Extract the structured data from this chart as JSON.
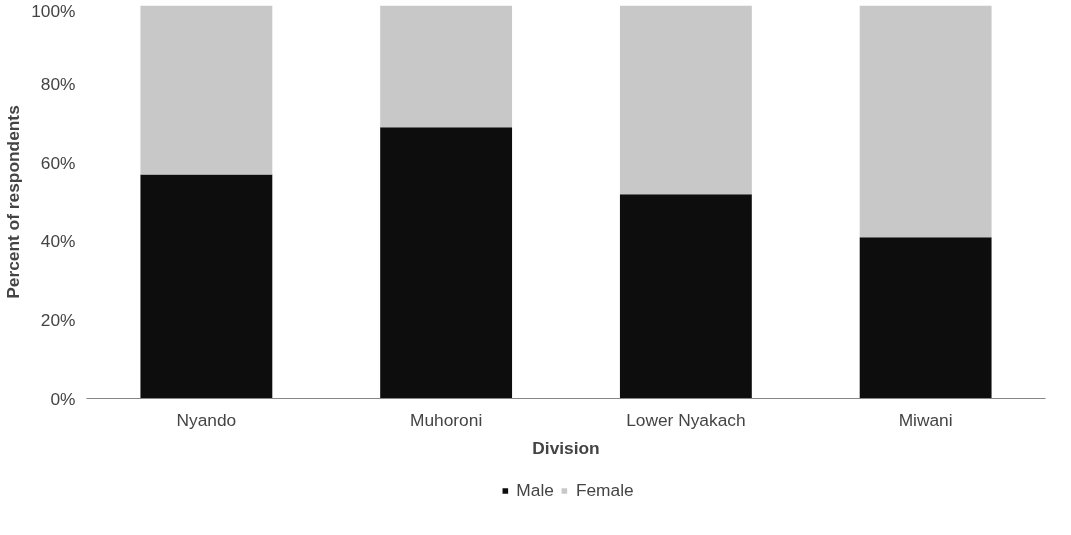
{
  "chart_data": {
    "type": "bar",
    "stacked": true,
    "xlabel": "Division",
    "ylabel": "Percent of respondents",
    "categories": [
      "Nyando",
      "Muhoroni",
      "Lower Nyakach",
      "Miwani"
    ],
    "series": [
      {
        "name": "Male",
        "color": "#0d0d0d",
        "values": [
          57,
          69,
          52,
          41
        ]
      },
      {
        "name": "Female",
        "color": "#c8c8c8",
        "values": [
          43,
          31,
          48,
          59
        ]
      }
    ],
    "ylim": [
      0,
      100
    ],
    "yticks": [
      {
        "value": 0,
        "label": "0%"
      },
      {
        "value": 20,
        "label": "20%"
      },
      {
        "value": 40,
        "label": "40%"
      },
      {
        "value": 60,
        "label": "60%"
      },
      {
        "value": 80,
        "label": "80%"
      },
      {
        "value": 100,
        "label": "100%"
      }
    ],
    "grid": false,
    "legend": "bottom"
  }
}
